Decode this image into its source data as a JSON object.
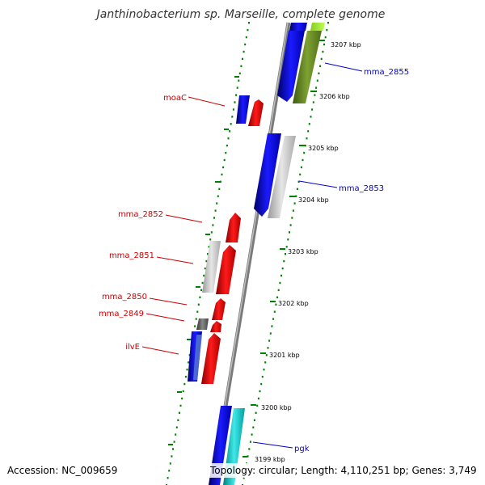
{
  "title": "Janthinobacterium sp. Marseille, complete genome",
  "footer": {
    "accession": "Accession: NC_009659",
    "summary": "Topology: circular; Length: 4,110,251 bp; Genes: 3,749"
  },
  "map": {
    "tick_labels": [
      "3199 kbp",
      "3200 kbp",
      "3201 kbp",
      "3202 kbp",
      "3203 kbp",
      "3204 kbp",
      "3205 kbp",
      "3206 kbp",
      "3207 kbp"
    ],
    "reverse_gene_labels": [
      "moaC",
      "mma_2852",
      "mma_2851",
      "mma_2850",
      "mma_2849",
      "ilvE"
    ],
    "forward_gene_labels": [
      "mma_2855",
      "mma_2853",
      "pgk"
    ]
  },
  "colors": {
    "cds": "#0000ee",
    "reverse_feature": "#ee0000",
    "forward_label": "#0000cc",
    "reverse_label": "#cc0000",
    "gray_feature": "#c8c8c8",
    "dark_feature": "#666666",
    "olive_feature": "#6b8e23",
    "cyan_feature": "#20d0d0",
    "backbone": "#888888",
    "dots": "#008000"
  }
}
